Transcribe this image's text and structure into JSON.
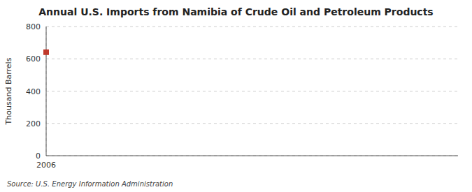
{
  "chart_data": {
    "type": "scatter",
    "title": "Annual U.S. Imports from Namibia of Crude Oil and Petroleum Products",
    "y_label": "Thousand Barrels",
    "source": "Source: U.S. Energy Information Administration",
    "x": [
      2006
    ],
    "values": [
      641
    ],
    "color": "#c0392b",
    "marker": "square",
    "xlim": [
      2006,
      2015
    ],
    "xticks": [
      2006
    ],
    "ylim": [
      0,
      800
    ],
    "yticks": [
      0,
      200,
      400,
      600,
      800
    ],
    "grid": true
  }
}
